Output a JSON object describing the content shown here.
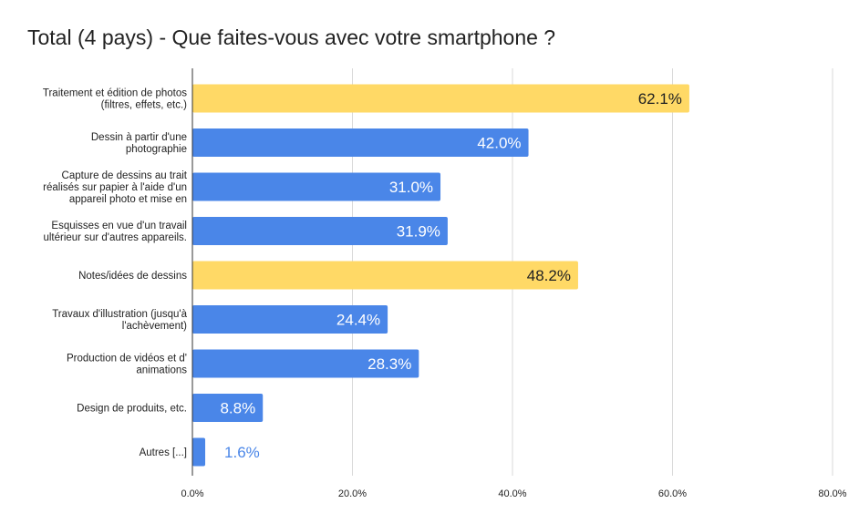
{
  "chart_data": {
    "type": "bar",
    "orientation": "horizontal",
    "title": "Total (4 pays) - Que faites-vous avec votre smartphone ?",
    "categories": [
      [
        "Traitement et édition de photos",
        "(filtres, effets, etc.)"
      ],
      [
        "Dessin à partir d'une",
        "photographie"
      ],
      [
        "Capture de dessins au trait",
        "réalisés sur papier à l'aide d'un",
        "appareil photo et mise en"
      ],
      [
        "Esquisses en vue d'un travail",
        "ultérieur sur d'autres appareils."
      ],
      [
        "Notes/idées de dessins"
      ],
      [
        "Travaux d'illustration (jusqu'à",
        "l'achèvement)"
      ],
      [
        "Production de vidéos et d'",
        "animations"
      ],
      [
        "Design de produits, etc."
      ],
      [
        "Autres [...]"
      ]
    ],
    "values": [
      62.1,
      42.0,
      31.0,
      31.9,
      48.2,
      24.4,
      28.3,
      8.8,
      1.6
    ],
    "value_labels": [
      "62.1%",
      "42.0%",
      "31.0%",
      "31.9%",
      "48.2%",
      "24.4%",
      "28.3%",
      "8.8%",
      "1.6%"
    ],
    "highlight": [
      true,
      false,
      false,
      false,
      true,
      false,
      false,
      false,
      false
    ],
    "xlim": [
      0,
      80
    ],
    "xticks": [
      0,
      20,
      40,
      60,
      80
    ],
    "xtick_labels": [
      "0.0%",
      "20.0%",
      "40.0%",
      "60.0%",
      "80.0%"
    ],
    "grid": true,
    "legend": "none",
    "colors": {
      "default": "#4a86e8",
      "highlight": "#ffd966",
      "grid": "#d9d9d9"
    }
  }
}
